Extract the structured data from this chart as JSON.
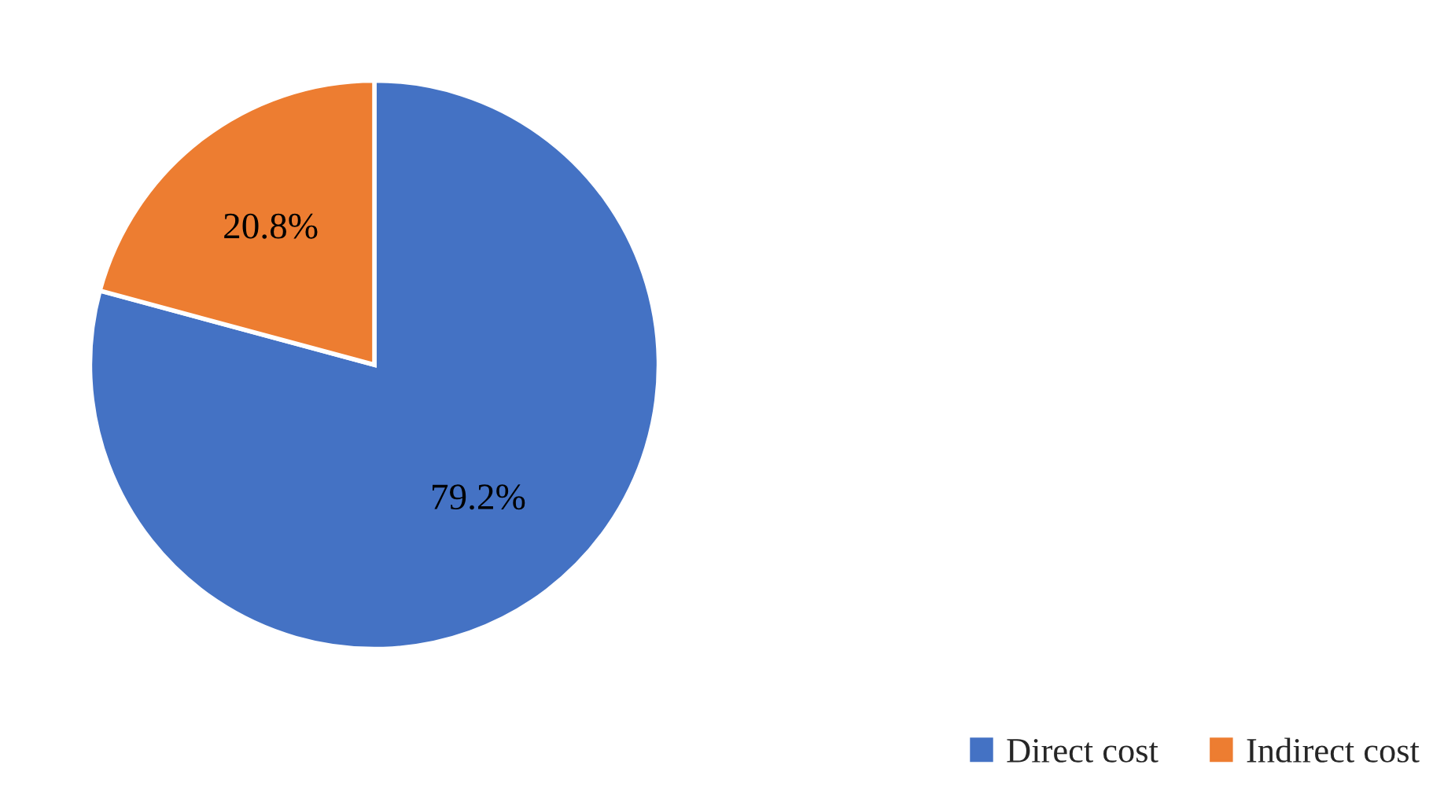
{
  "chart_data": {
    "type": "pie",
    "categories": [
      "Direct cost",
      "Indirect cost"
    ],
    "values": [
      79.2,
      20.8
    ],
    "colors": [
      "#4472c4",
      "#ed7d31"
    ],
    "value_labels": [
      "79.2%",
      "20.8%"
    ],
    "legend": "bottom right"
  }
}
